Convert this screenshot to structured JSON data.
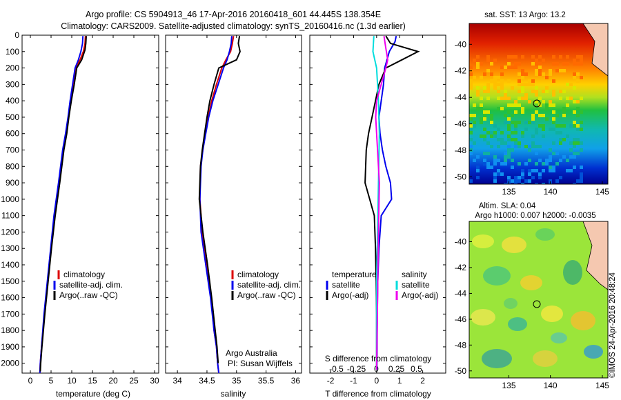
{
  "header": {
    "line1": "Argo profile: CS 5904913_46 17-Apr-2016 20160418_601 44.445S 138.354E",
    "line2": "Climatology: CARS2009. Satellite-adjusted climatology: synTS_20160416.nc (1.3d earlier)"
  },
  "side_text": "©IMOS 24-Apr-2016 20:48:24",
  "colors": {
    "clim": "#dd0000",
    "sat": "#0000ee",
    "argo": "#000000",
    "sal_sat": "#00dddd",
    "sal_argo": "#ee00ee"
  },
  "chart_data": [
    {
      "type": "line",
      "id": "temperature",
      "xlabel": "temperature (deg C)",
      "xlim": [
        -2,
        31
      ],
      "xticks": [
        0,
        5,
        10,
        15,
        20,
        25,
        30
      ],
      "xticklabels": [
        "0",
        "5",
        "10",
        "15",
        "20",
        "25",
        "30"
      ],
      "ylim": [
        2060,
        0
      ],
      "yticks": [
        0,
        100,
        200,
        300,
        400,
        500,
        600,
        700,
        800,
        900,
        1000,
        1100,
        1200,
        1300,
        1400,
        1500,
        1600,
        1700,
        1800,
        1900,
        2000
      ],
      "yticklabels": [
        "0",
        "100",
        "200",
        "300",
        "400",
        "500",
        "600",
        "700",
        "800",
        "900",
        "1000",
        "1100",
        "1200",
        "1300",
        "1400",
        "1500",
        "1600",
        "1700",
        "1800",
        "1900",
        "2000"
      ],
      "legend": [
        "climatology",
        "satellite-adj. clim.",
        "Argo(..raw -QC)"
      ],
      "series": [
        {
          "name": "climatology",
          "x": [
            13.3,
            13.2,
            12.8,
            12.0,
            10.9,
            10.3,
            9.7,
            9.2,
            8.6,
            7.9,
            6.9,
            5.8,
            5.0,
            4.2,
            3.4,
            2.7,
            2.4,
            2.3
          ],
          "y": [
            5,
            50,
            100,
            150,
            200,
            300,
            400,
            500,
            600,
            700,
            900,
            1100,
            1300,
            1500,
            1700,
            1900,
            2000,
            2060
          ]
        },
        {
          "name": "satellite-adj. clim.",
          "x": [
            12.7,
            12.6,
            12.2,
            11.6,
            10.8,
            10.2,
            9.6,
            9.1,
            8.5,
            7.8,
            6.8,
            5.7,
            4.9,
            4.1,
            3.3,
            2.7,
            2.4,
            2.3
          ],
          "y": [
            5,
            50,
            100,
            150,
            200,
            300,
            400,
            500,
            600,
            700,
            900,
            1100,
            1300,
            1500,
            1700,
            1900,
            2000,
            2060
          ]
        },
        {
          "name": "Argo(..raw -QC)",
          "x": [
            13.5,
            13.4,
            13.2,
            12.4,
            11.2,
            10.6,
            9.9,
            9.3,
            8.8,
            8.1,
            7.1,
            6.0,
            5.1,
            4.3,
            3.5,
            2.8,
            2.5,
            2.4
          ],
          "y": [
            5,
            50,
            90,
            150,
            200,
            300,
            400,
            500,
            600,
            700,
            900,
            1100,
            1300,
            1500,
            1700,
            1900,
            2000,
            2050
          ]
        }
      ]
    },
    {
      "type": "line",
      "id": "salinity",
      "xlabel": "salinity",
      "xlim": [
        33.8,
        36.1
      ],
      "xticks": [
        34,
        34.5,
        35,
        35.5,
        36
      ],
      "xticklabels": [
        "34",
        "34.5",
        "35",
        "35.5",
        "36"
      ],
      "ylim": [
        2060,
        0
      ],
      "legend": [
        "climatology",
        "satellite-adj. clim.",
        "Argo(..raw -QC)"
      ],
      "annotation": [
        "Argo Australia",
        "PI: Susan Wijffels"
      ],
      "series": [
        {
          "name": "climatology",
          "x": [
            34.95,
            34.93,
            34.9,
            34.82,
            34.75,
            34.66,
            34.58,
            34.52,
            34.47,
            34.43,
            34.39,
            34.38,
            34.42,
            34.5,
            34.57,
            34.62,
            34.66,
            34.68,
            34.7
          ],
          "y": [
            5,
            50,
            100,
            150,
            200,
            300,
            400,
            500,
            600,
            700,
            800,
            1000,
            1200,
            1400,
            1600,
            1800,
            1900,
            2000,
            2060
          ]
        },
        {
          "name": "satellite-adj. clim.",
          "x": [
            34.92,
            34.91,
            34.88,
            34.84,
            34.78,
            34.69,
            34.6,
            34.53,
            34.48,
            34.43,
            34.4,
            34.38,
            34.4,
            34.48,
            34.56,
            34.62,
            34.66,
            34.68,
            34.7
          ],
          "y": [
            5,
            50,
            100,
            150,
            200,
            300,
            400,
            500,
            600,
            700,
            800,
            1000,
            1200,
            1400,
            1600,
            1800,
            1900,
            2000,
            2060
          ]
        },
        {
          "name": "Argo(..raw -QC)",
          "x": [
            35.05,
            35.03,
            35.06,
            35.0,
            34.7,
            34.62,
            34.55,
            34.5,
            34.46,
            34.42,
            34.39,
            34.37,
            34.43,
            34.51,
            34.58,
            34.64,
            34.67,
            34.69
          ],
          "y": [
            5,
            50,
            100,
            150,
            200,
            300,
            400,
            500,
            600,
            700,
            800,
            1000,
            1200,
            1400,
            1600,
            1800,
            1900,
            2000
          ]
        }
      ]
    },
    {
      "type": "line",
      "id": "difference",
      "xlabel": "T difference from climatology",
      "xlim": [
        -2.9,
        3.0
      ],
      "xticks": [
        -2,
        -1,
        0,
        1,
        2
      ],
      "xticklabels": [
        "-2",
        "-1",
        "0",
        "1",
        "2"
      ],
      "top_label": "S difference from climatology",
      "top_ticks": [
        -0.5,
        -0.25,
        0,
        0.25,
        0.5
      ],
      "top_ticklabels": [
        "-0.5",
        "-0.25",
        "0",
        "0.25",
        "0.5"
      ],
      "ylim": [
        2060,
        0
      ],
      "legend_left_title": "temperature",
      "legend_right_title": "salinity",
      "legend": [
        "satellite",
        "Argo(-adj)",
        "satellite",
        "Argo(-adj)"
      ],
      "series": [
        {
          "name": "temperature satellite",
          "x": [
            0.85,
            0.8,
            0.55,
            0.35,
            0.3,
            0.2,
            0.1,
            0.15,
            0.25,
            0.4,
            0.6,
            0.65,
            0.2,
            0.1,
            0.05,
            0.03,
            0.02,
            0.01
          ],
          "y": [
            5,
            40,
            100,
            200,
            300,
            400,
            500,
            600,
            700,
            800,
            900,
            1000,
            1100,
            1300,
            1500,
            1700,
            1900,
            2040
          ]
        },
        {
          "name": "temperature Argo(-adj)",
          "x": [
            0.4,
            0.6,
            1.8,
            1.1,
            0.4,
            0.1,
            -0.05,
            -0.2,
            -0.35,
            -0.45,
            -0.5,
            -0.3,
            -0.1,
            -0.05,
            -0.02,
            0.0,
            0.0,
            0.0
          ],
          "y": [
            5,
            50,
            100,
            150,
            200,
            300,
            400,
            500,
            600,
            700,
            900,
            1000,
            1100,
            1300,
            1500,
            1700,
            1900,
            2040
          ]
        },
        {
          "name": "salinity satellite",
          "x": [
            -0.03,
            -0.04,
            0.0,
            0.02,
            0.03,
            0.02,
            0.01,
            0.0,
            0.0,
            0.0
          ],
          "y": [
            5,
            100,
            200,
            400,
            600,
            900,
            1200,
            1500,
            1800,
            2040
          ]
        },
        {
          "name": "salinity Argo(-adj)",
          "x": [
            0.08,
            0.1,
            0.12,
            0.1,
            0.05,
            0.0,
            -0.01,
            0.03,
            0.02,
            0.01,
            0.0
          ],
          "y": [
            5,
            80,
            150,
            200,
            300,
            400,
            500,
            900,
            1200,
            1600,
            2040
          ]
        }
      ]
    }
  ],
  "maps": {
    "sst": {
      "title": "sat. SST: 13 Argo: 13.2",
      "xticklabels": [
        "135",
        "140",
        "145"
      ],
      "yticklabels": [
        "-40",
        "-42",
        "-44",
        "-46",
        "-48",
        "-50"
      ]
    },
    "sla": {
      "title_line1": "Altim. SLA: 0.04",
      "title_line2": "Argo h1000: 0.007 h2000: -0.0035",
      "xticklabels": [
        "135",
        "140",
        "145"
      ],
      "yticklabels": [
        "-40",
        "-42",
        "-44",
        "-46",
        "-48",
        "-50"
      ]
    }
  }
}
